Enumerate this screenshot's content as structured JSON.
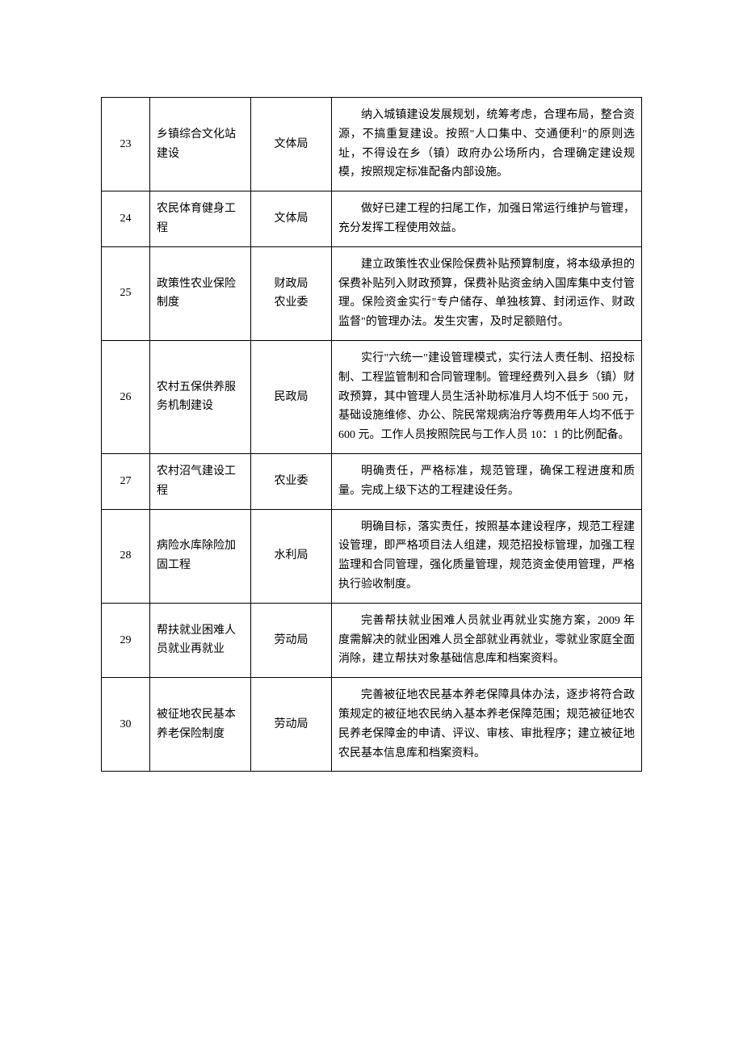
{
  "table": {
    "columns": {
      "num_width": 60,
      "project_width": 125,
      "dept_width": 100,
      "desc_width": "auto"
    },
    "font_size": 14,
    "line_height": 1.7,
    "border_color": "#000000",
    "text_color": "#000000",
    "background_color": "#ffffff",
    "rows": [
      {
        "num": "23",
        "project": "乡镇综合文化站建设",
        "dept": "文体局",
        "desc": "纳入城镇建设发展规划，统筹考虑，合理布局，整合资源，不搞重复建设。按照\"人口集中、交通便利\"的原则选址，不得设在乡（镇）政府办公场所内，合理确定建设规模，按照规定标准配备内部设施。"
      },
      {
        "num": "24",
        "project": "农民体育健身工程",
        "dept": "文体局",
        "desc": "做好已建工程的扫尾工作，加强日常运行维护与管理，充分发挥工程使用效益。"
      },
      {
        "num": "25",
        "project": "政策性农业保险制度",
        "dept": "财政局\n农业委",
        "desc": "建立政策性农业保险保费补贴预算制度，将本级承担的保费补贴列入财政预算，保费补贴资金纳入国库集中支付管理。保险资金实行\"专户储存、单独核算、封闭运作、财政监督\"的管理办法。发生灾害，及时足额赔付。"
      },
      {
        "num": "26",
        "project": "农村五保供养服务机制建设",
        "dept": "民政局",
        "desc": "实行\"六统一\"建设管理模式，实行法人责任制、招投标制、工程监管制和合同管理制。管理经费列入县乡（镇）财政预算，其中管理人员生活补助标准月人均不低于 500 元，基础设施维修、办公、院民常规病治疗等费用年人均不低于 600 元。工作人员按照院民与工作人员 10：1 的比例配备。"
      },
      {
        "num": "27",
        "project": "农村沼气建设工程",
        "dept": "农业委",
        "desc": "明确责任，严格标准，规范管理，确保工程进度和质量。完成上级下达的工程建设任务。"
      },
      {
        "num": "28",
        "project": "病险水库除险加固工程",
        "dept": "水利局",
        "desc": "明确目标，落实责任，按照基本建设程序，规范工程建设管理，即严格项目法人组建，规范招投标管理，加强工程监理和合同管理，强化质量管理，规范资金使用管理，严格执行验收制度。"
      },
      {
        "num": "29",
        "project": "帮扶就业困难人员就业再就业",
        "dept": "劳动局",
        "desc": "完善帮扶就业困难人员就业再就业实施方案，2009 年度需解决的就业困难人员全部就业再就业，零就业家庭全面消除，建立帮扶对象基础信息库和档案资料。"
      },
      {
        "num": "30",
        "project": "被征地农民基本养老保险制度",
        "dept": "劳动局",
        "desc": "完善被征地农民基本养老保障具体办法，逐步将符合政策规定的被征地农民纳入基本养老保障范围；规范被征地农民养老保障金的申请、评议、审核、审批程序；建立被征地农民基本信息库和档案资料。"
      }
    ]
  }
}
